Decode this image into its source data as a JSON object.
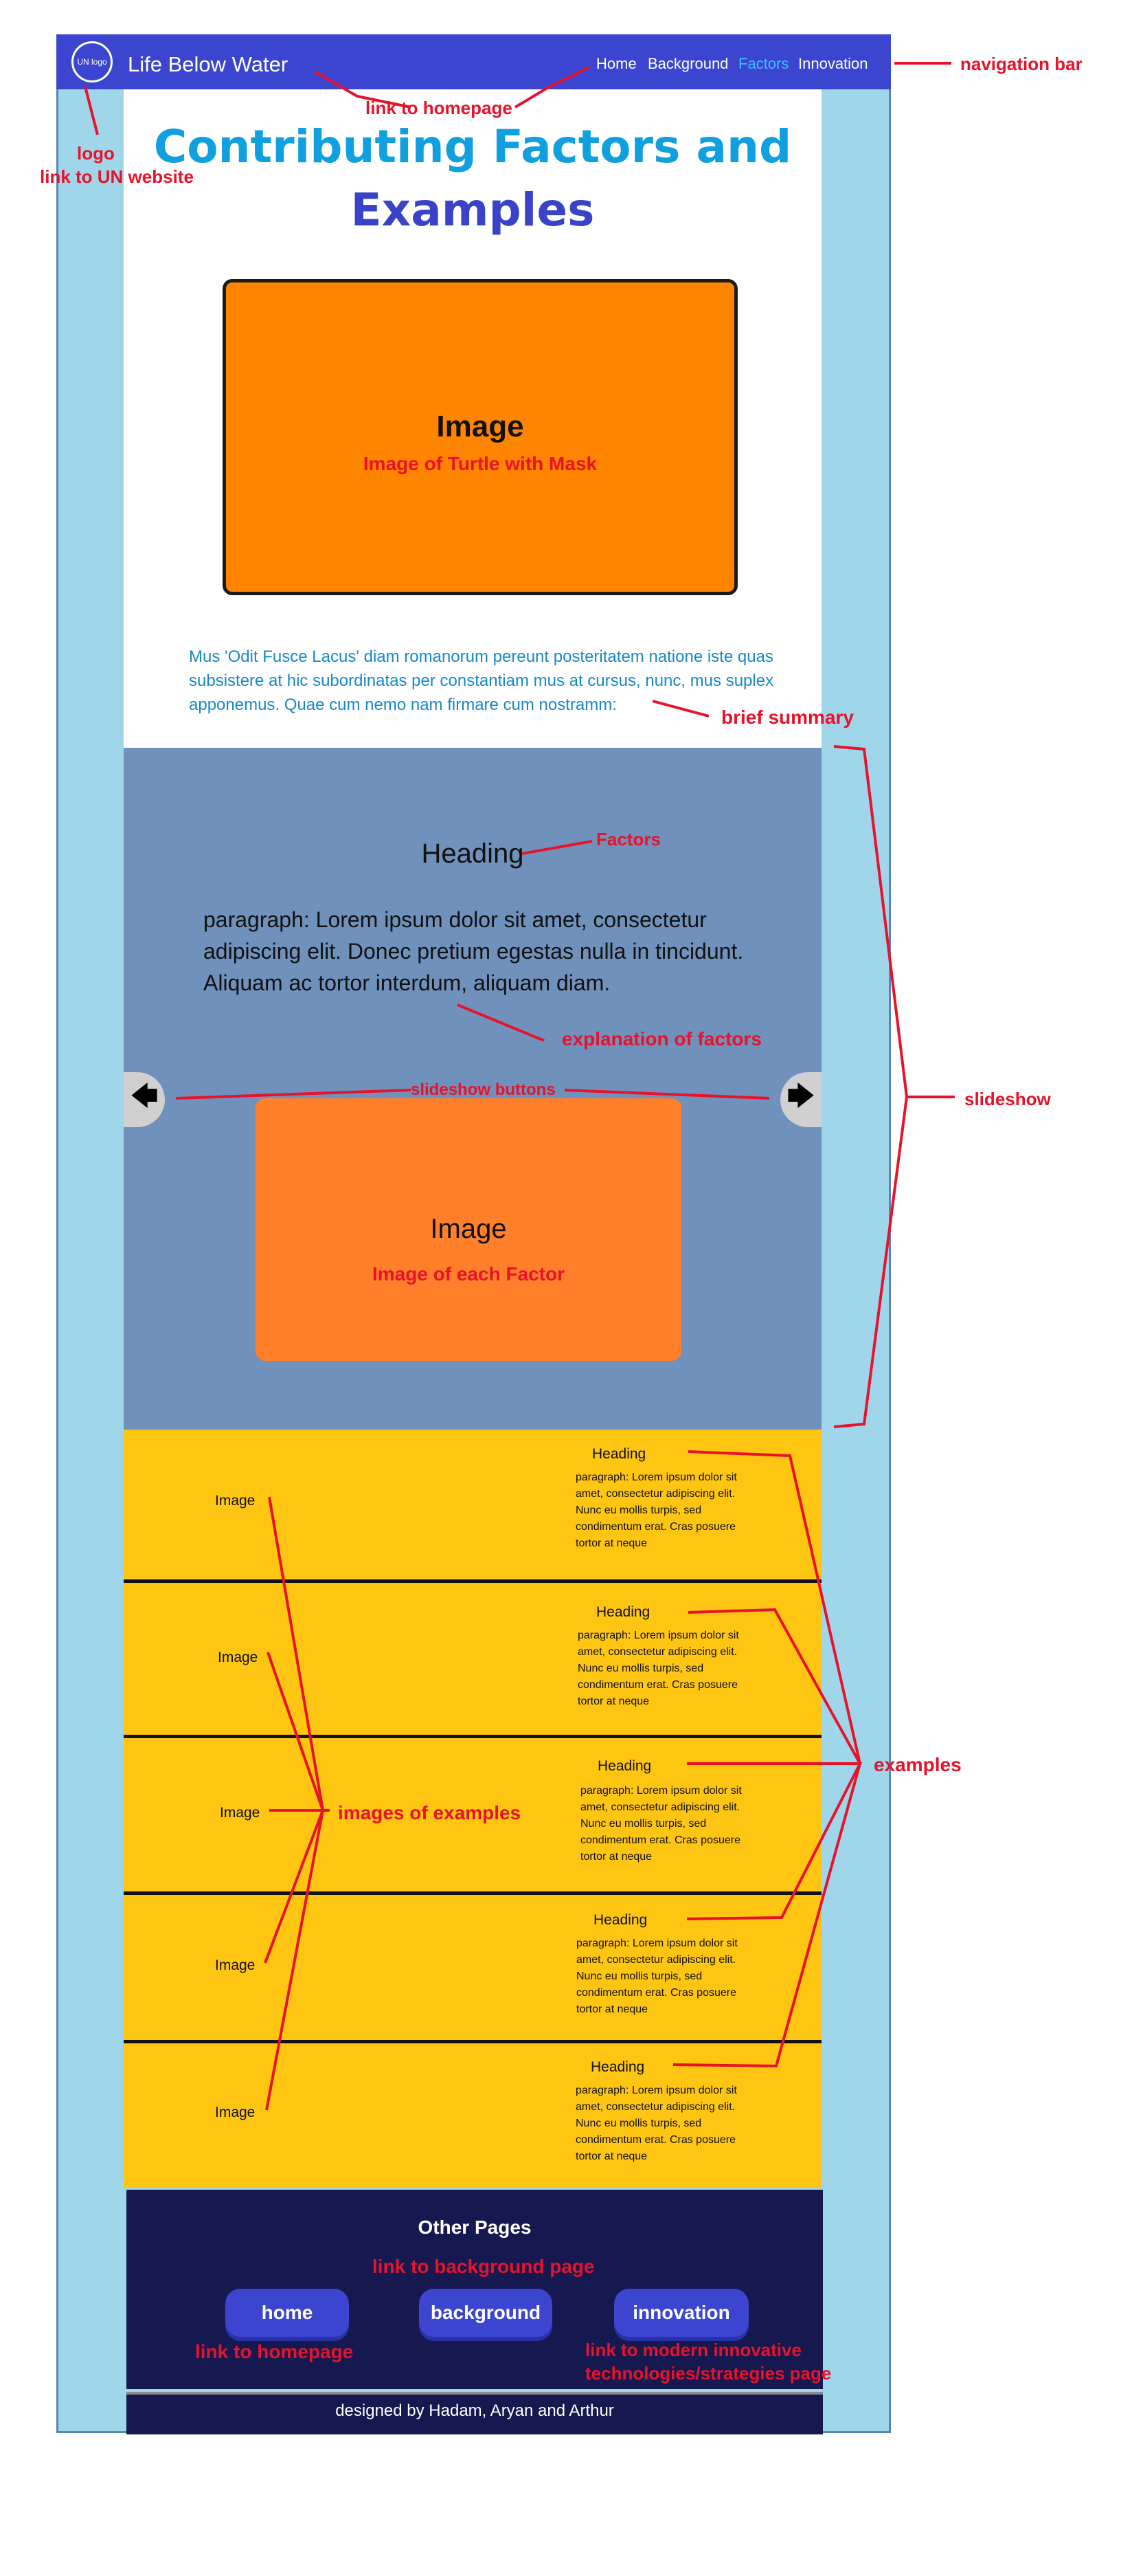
{
  "header": {
    "logo_text": "UN logo",
    "site_title": "Life Below Water",
    "nav": [
      {
        "label": "Home"
      },
      {
        "label": "Background"
      },
      {
        "label": "Factors"
      },
      {
        "label": "Innovation"
      }
    ]
  },
  "hero": {
    "title_line1": "Contributing Factors and",
    "title_line2": "Examples",
    "image_label": "Image",
    "image_caption": "Image of Turtle with Mask",
    "summary": "Mus 'Odit Fusce Lacus' diam romanorum pereunt posteritatem natione iste quas subsistere at hic subordinatas per constantiam mus at cursus, nunc, mus suplex apponemus. Quae cum nemo nam firmare cum nostramm:"
  },
  "slideshow": {
    "heading": "Heading",
    "paragraph": "paragraph: Lorem ipsum dolor sit amet, consectetur adipiscing elit. Donec pretium egestas nulla in tincidunt. Aliquam ac tortor interdum, aliquam diam.",
    "image_label": "Image",
    "image_caption": "Image of each Factor",
    "prev_icon": "left-arrow",
    "next_icon": "right-arrow"
  },
  "examples": [
    {
      "image_label": "Image",
      "heading": "Heading",
      "paragraph": "paragraph: Lorem ipsum dolor sit amet, consectetur adipiscing elit. Nunc eu mollis turpis, sed condimentum erat. Cras posuere tortor at neque"
    },
    {
      "image_label": "Image",
      "heading": "Heading",
      "paragraph": "paragraph: Lorem ipsum dolor sit amet, consectetur adipiscing elit. Nunc eu mollis turpis, sed condimentum erat. Cras posuere tortor at neque"
    },
    {
      "image_label": "Image",
      "heading": "Heading",
      "paragraph": "paragraph: Lorem ipsum dolor sit amet, consectetur adipiscing elit. Nunc eu mollis turpis, sed condimentum erat. Cras posuere tortor at neque"
    },
    {
      "image_label": "Image",
      "heading": "Heading",
      "paragraph": "paragraph: Lorem ipsum dolor sit amet, consectetur adipiscing elit. Nunc eu mollis turpis, sed condimentum erat. Cras posuere tortor at neque"
    },
    {
      "image_label": "Image",
      "heading": "Heading",
      "paragraph": "paragraph: Lorem ipsum dolor sit amet, consectetur adipiscing elit. Nunc eu mollis turpis, sed condimentum erat. Cras posuere tortor at neque"
    }
  ],
  "footer": {
    "heading": "Other Pages",
    "buttons": [
      {
        "label": "home"
      },
      {
        "label": "background"
      },
      {
        "label": "innovation"
      }
    ],
    "credits": "designed by Hadam, Aryan and Arthur"
  },
  "annotations": {
    "navigation_bar": "navigation bar",
    "link_to_homepage_top": "link to homepage",
    "logo": "logo",
    "link_to_un": "link to UN website",
    "brief_summary": "brief summary",
    "factors": "Factors",
    "explanation_of_factors": "explanation of factors",
    "slideshow_buttons": "slideshow buttons",
    "slideshow": "slideshow",
    "examples": "examples",
    "images_of_examples": "images of examples",
    "link_to_background": "link to background page",
    "link_to_homepage_bottom": "link to homepage",
    "link_to_modern_1": "link to modern innovative",
    "link_to_modern_2": "technologies/strategies page"
  },
  "colors": {
    "nav_bg": "#3b45d0",
    "side_bg": "#9fd6ea",
    "hero_image": "#ff8400",
    "slideshow_bg": "#6f91bc",
    "slide_image": "#ff7f2a",
    "examples_bg": "#fec512",
    "footer_bg": "#15194f",
    "annotation": "#e8122a",
    "active_nav": "#3cc0ff"
  }
}
